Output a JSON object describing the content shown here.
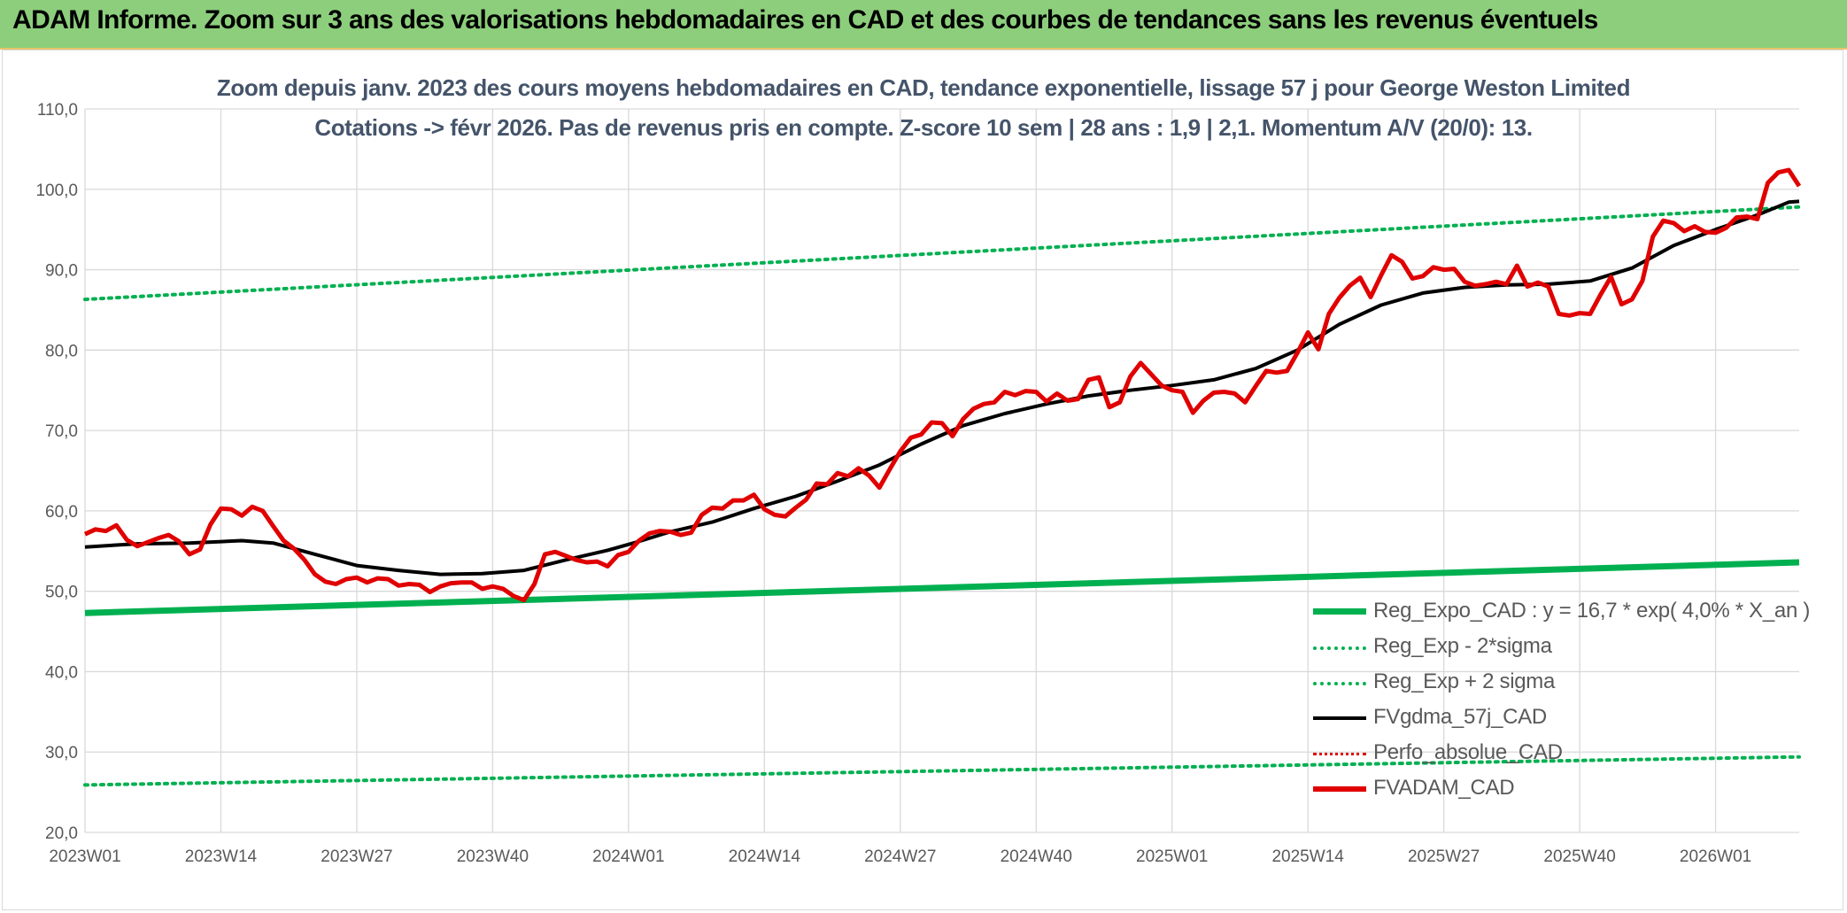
{
  "banner": {
    "title": "ADAM Informe. Zoom sur 3 ans des valorisations hebdomadaires en CAD et des courbes de tendances sans les revenus éventuels"
  },
  "colors": {
    "banner_bg": "#8dce7c",
    "regression": "#00b050",
    "sigma_bands": "#00b050",
    "smoothed": "#000000",
    "adam": "#e00000",
    "perfo": "#e00000",
    "gridlines": "#d9d9d9",
    "subtitle": "#44546a"
  },
  "chart_data": {
    "type": "line",
    "title_line1": "Zoom depuis janv. 2023 des cours moyens hebdomadaires en CAD, tendance exponentielle, lissage 57 j pour George Weston Limited",
    "title_line2": "Cotations -> févr 2026. Pas de revenus pris en compte. Z-score 10 sem | 28 ans : 1,9 | 2,1. Momentum A/V (20/0): 13.",
    "ylim": [
      20,
      110
    ],
    "yticks": [
      "20,0",
      "30,0",
      "40,0",
      "50,0",
      "60,0",
      "70,0",
      "80,0",
      "90,0",
      "100,0",
      "110,0"
    ],
    "x_range_weeks": [
      0,
      164
    ],
    "xticks": [
      {
        "label": "2023W01",
        "week": 0
      },
      {
        "label": "2023W14",
        "week": 13
      },
      {
        "label": "2023W27",
        "week": 26
      },
      {
        "label": "2023W40",
        "week": 39
      },
      {
        "label": "2024W01",
        "week": 52
      },
      {
        "label": "2024W14",
        "week": 65
      },
      {
        "label": "2024W27",
        "week": 78
      },
      {
        "label": "2024W40",
        "week": 91
      },
      {
        "label": "2025W01",
        "week": 104
      },
      {
        "label": "2025W14",
        "week": 117
      },
      {
        "label": "2025W27",
        "week": 130
      },
      {
        "label": "2025W40",
        "week": 143
      },
      {
        "label": "2026W01",
        "week": 156
      }
    ],
    "grid": true,
    "legend_position": "bottom-right",
    "series": [
      {
        "name": "Reg_Expo_CAD : y = 16,7 * exp( 4,0% *  X_an )",
        "style": "thick-solid",
        "color": "#00b050",
        "points": [
          [
            0,
            47.3
          ],
          [
            164,
            53.6
          ]
        ]
      },
      {
        "name": "Reg_Exp - 2*sigma",
        "style": "dotted",
        "color": "#00b050",
        "points": [
          [
            0,
            25.9
          ],
          [
            164,
            29.4
          ]
        ]
      },
      {
        "name": "Reg_Exp + 2 sigma",
        "style": "dotted",
        "color": "#00b050",
        "points": [
          [
            0,
            86.3
          ],
          [
            164,
            97.8
          ]
        ]
      },
      {
        "name": "FVgdma_57j_CAD",
        "style": "solid",
        "color": "#000000",
        "points": [
          [
            0,
            55.5
          ],
          [
            5,
            55.9
          ],
          [
            10,
            56.0
          ],
          [
            15,
            56.3
          ],
          [
            18,
            56.0
          ],
          [
            22,
            54.6
          ],
          [
            26,
            53.2
          ],
          [
            30,
            52.6
          ],
          [
            34,
            52.1
          ],
          [
            38,
            52.2
          ],
          [
            42,
            52.6
          ],
          [
            46,
            53.9
          ],
          [
            50,
            55.1
          ],
          [
            53,
            56.2
          ],
          [
            56,
            57.4
          ],
          [
            60,
            58.6
          ],
          [
            64,
            60.3
          ],
          [
            68,
            61.8
          ],
          [
            72,
            63.7
          ],
          [
            76,
            65.7
          ],
          [
            80,
            68.3
          ],
          [
            84,
            70.6
          ],
          [
            88,
            72.1
          ],
          [
            92,
            73.3
          ],
          [
            96,
            74.3
          ],
          [
            100,
            75.0
          ],
          [
            104,
            75.6
          ],
          [
            108,
            76.3
          ],
          [
            112,
            77.7
          ],
          [
            116,
            80.0
          ],
          [
            120,
            83.2
          ],
          [
            124,
            85.6
          ],
          [
            128,
            87.1
          ],
          [
            132,
            87.8
          ],
          [
            136,
            88.1
          ],
          [
            140,
            88.2
          ],
          [
            144,
            88.6
          ],
          [
            148,
            90.2
          ],
          [
            152,
            93.0
          ],
          [
            156,
            95.0
          ],
          [
            160,
            96.8
          ],
          [
            163,
            98.4
          ],
          [
            164,
            98.5
          ]
        ]
      },
      {
        "name": "Perfo_absolue_CAD",
        "style": "dotted",
        "color": "#e00000",
        "points": []
      },
      {
        "name": "FVADAM_CAD",
        "style": "thick-solid",
        "color": "#e00000",
        "points": [
          [
            0,
            57.1
          ],
          [
            1,
            57.7
          ],
          [
            2,
            57.5
          ],
          [
            3,
            58.2
          ],
          [
            4,
            56.4
          ],
          [
            5,
            55.6
          ],
          [
            6,
            56.1
          ],
          [
            7,
            56.6
          ],
          [
            8,
            57.0
          ],
          [
            9,
            56.2
          ],
          [
            10,
            54.6
          ],
          [
            11,
            55.2
          ],
          [
            12,
            58.3
          ],
          [
            13,
            60.3
          ],
          [
            14,
            60.2
          ],
          [
            15,
            59.4
          ],
          [
            16,
            60.5
          ],
          [
            17,
            60.0
          ],
          [
            18,
            58.1
          ],
          [
            19,
            56.3
          ],
          [
            20,
            55.3
          ],
          [
            21,
            53.9
          ],
          [
            22,
            52.1
          ],
          [
            23,
            51.2
          ],
          [
            24,
            50.9
          ],
          [
            25,
            51.5
          ],
          [
            26,
            51.7
          ],
          [
            27,
            51.1
          ],
          [
            28,
            51.6
          ],
          [
            29,
            51.5
          ],
          [
            30,
            50.7
          ],
          [
            31,
            50.9
          ],
          [
            32,
            50.8
          ],
          [
            33,
            49.9
          ],
          [
            34,
            50.6
          ],
          [
            35,
            51.0
          ],
          [
            36,
            51.1
          ],
          [
            37,
            51.1
          ],
          [
            38,
            50.3
          ],
          [
            39,
            50.6
          ],
          [
            40,
            50.3
          ],
          [
            41,
            49.4
          ],
          [
            42,
            48.9
          ],
          [
            43,
            50.9
          ],
          [
            44,
            54.6
          ],
          [
            45,
            54.9
          ],
          [
            46,
            54.4
          ],
          [
            47,
            53.9
          ],
          [
            48,
            53.6
          ],
          [
            49,
            53.7
          ],
          [
            50,
            53.1
          ],
          [
            51,
            54.5
          ],
          [
            52,
            54.9
          ],
          [
            53,
            56.3
          ],
          [
            54,
            57.2
          ],
          [
            55,
            57.5
          ],
          [
            56,
            57.4
          ],
          [
            57,
            57.0
          ],
          [
            58,
            57.3
          ],
          [
            59,
            59.5
          ],
          [
            60,
            60.4
          ],
          [
            61,
            60.3
          ],
          [
            62,
            61.3
          ],
          [
            63,
            61.3
          ],
          [
            64,
            62.0
          ],
          [
            65,
            60.2
          ],
          [
            66,
            59.5
          ],
          [
            67,
            59.3
          ],
          [
            68,
            60.4
          ],
          [
            69,
            61.4
          ],
          [
            70,
            63.4
          ],
          [
            71,
            63.3
          ],
          [
            72,
            64.7
          ],
          [
            73,
            64.3
          ],
          [
            74,
            65.3
          ],
          [
            75,
            64.4
          ],
          [
            76,
            62.9
          ],
          [
            77,
            65.2
          ],
          [
            78,
            67.4
          ],
          [
            79,
            69.1
          ],
          [
            80,
            69.5
          ],
          [
            81,
            71.0
          ],
          [
            82,
            70.9
          ],
          [
            83,
            69.3
          ],
          [
            84,
            71.4
          ],
          [
            85,
            72.7
          ],
          [
            86,
            73.3
          ],
          [
            87,
            73.5
          ],
          [
            88,
            74.8
          ],
          [
            89,
            74.4
          ],
          [
            90,
            74.9
          ],
          [
            91,
            74.8
          ],
          [
            92,
            73.6
          ],
          [
            93,
            74.6
          ],
          [
            94,
            73.7
          ],
          [
            95,
            73.9
          ],
          [
            96,
            76.3
          ],
          [
            97,
            76.6
          ],
          [
            98,
            72.9
          ],
          [
            99,
            73.5
          ],
          [
            100,
            76.7
          ],
          [
            101,
            78.4
          ],
          [
            102,
            77.0
          ],
          [
            103,
            75.6
          ],
          [
            104,
            75.0
          ],
          [
            105,
            74.8
          ],
          [
            106,
            72.2
          ],
          [
            107,
            73.7
          ],
          [
            108,
            74.7
          ],
          [
            109,
            74.8
          ],
          [
            110,
            74.6
          ],
          [
            111,
            73.5
          ],
          [
            112,
            75.5
          ],
          [
            113,
            77.4
          ],
          [
            114,
            77.2
          ],
          [
            115,
            77.4
          ],
          [
            116,
            79.7
          ],
          [
            117,
            82.2
          ],
          [
            118,
            80.1
          ],
          [
            119,
            84.5
          ],
          [
            120,
            86.5
          ],
          [
            121,
            88.0
          ],
          [
            122,
            89.0
          ],
          [
            123,
            86.6
          ],
          [
            124,
            89.3
          ],
          [
            125,
            91.8
          ],
          [
            126,
            91.0
          ],
          [
            127,
            88.9
          ],
          [
            128,
            89.2
          ],
          [
            129,
            90.3
          ],
          [
            130,
            90.0
          ],
          [
            131,
            90.1
          ],
          [
            132,
            88.5
          ],
          [
            133,
            88.0
          ],
          [
            134,
            88.2
          ],
          [
            135,
            88.5
          ],
          [
            136,
            88.2
          ],
          [
            137,
            90.5
          ],
          [
            138,
            87.9
          ],
          [
            139,
            88.4
          ],
          [
            140,
            87.9
          ],
          [
            141,
            84.5
          ],
          [
            142,
            84.3
          ],
          [
            143,
            84.6
          ],
          [
            144,
            84.5
          ],
          [
            145,
            86.9
          ],
          [
            146,
            89.1
          ],
          [
            147,
            85.7
          ],
          [
            148,
            86.3
          ],
          [
            149,
            88.6
          ],
          [
            150,
            94.1
          ],
          [
            151,
            96.1
          ],
          [
            152,
            95.8
          ],
          [
            153,
            94.8
          ],
          [
            154,
            95.4
          ],
          [
            155,
            94.7
          ],
          [
            156,
            94.6
          ],
          [
            157,
            95.2
          ],
          [
            158,
            96.5
          ],
          [
            159,
            96.6
          ],
          [
            160,
            96.3
          ],
          [
            161,
            100.8
          ],
          [
            162,
            102.1
          ],
          [
            163,
            102.4
          ],
          [
            164,
            100.4
          ]
        ]
      }
    ]
  }
}
